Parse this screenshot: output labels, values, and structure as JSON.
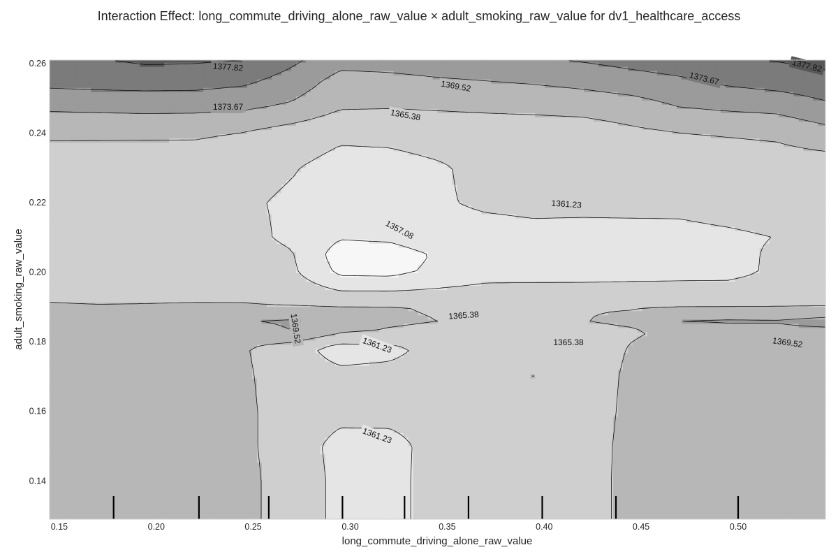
{
  "chart_data": {
    "type": "contour",
    "title": "Interaction Effect: long_commute_driving_alone_raw_value × adult_smoking_raw_value for dv1_healthcare_access",
    "xlabel": "long_commute_driving_alone_raw_value",
    "ylabel": "adult_smoking_raw_value",
    "xlim": [
      0.145,
      0.545
    ],
    "ylim": [
      0.129,
      0.261
    ],
    "xticks": [
      "0.15",
      "0.20",
      "0.25",
      "0.30",
      "0.35",
      "0.40",
      "0.45",
      "0.50"
    ],
    "yticks": [
      "0.14",
      "0.16",
      "0.18",
      "0.20",
      "0.22",
      "0.24",
      "0.26"
    ],
    "contour_levels": [
      1357.08,
      1361.23,
      1365.38,
      1369.52,
      1373.67,
      1377.82
    ],
    "contour_labels": [
      "1377.82",
      "1373.67",
      "1369.52",
      "1365.38",
      "1361.23",
      "1357.08"
    ],
    "colormap": "greys",
    "grid": false,
    "rug_x": [
      0.178,
      0.222,
      0.258,
      0.296,
      0.328,
      0.361,
      0.399,
      0.437,
      0.5
    ],
    "x": [
      0.145,
      0.17,
      0.195,
      0.22,
      0.245,
      0.27,
      0.295,
      0.32,
      0.345,
      0.37,
      0.395,
      0.42,
      0.445,
      0.47,
      0.495,
      0.52,
      0.545
    ],
    "y": [
      0.129,
      0.14,
      0.15,
      0.16,
      0.17,
      0.178,
      0.183,
      0.186,
      0.19,
      0.2,
      0.205,
      0.21,
      0.22,
      0.23,
      0.24,
      0.248,
      0.255,
      0.261
    ],
    "z": [
      [
        1367.5,
        1367.5,
        1367.4,
        1367.2,
        1366.4,
        1363.6,
        1360.2,
        1359.8,
        1363.0,
        1363.8,
        1363.9,
        1363.8,
        1366.5,
        1367.0,
        1367.5,
        1368.5,
        1369.4
      ],
      [
        1367.5,
        1367.5,
        1367.4,
        1367.2,
        1366.4,
        1363.6,
        1360.2,
        1359.8,
        1363.0,
        1363.8,
        1363.9,
        1363.8,
        1366.5,
        1367.0,
        1367.5,
        1368.5,
        1369.4
      ],
      [
        1367.5,
        1367.5,
        1367.4,
        1367.2,
        1366.2,
        1363.4,
        1359.9,
        1359.8,
        1362.8,
        1363.8,
        1363.9,
        1363.8,
        1366.4,
        1367.0,
        1367.5,
        1368.5,
        1369.4
      ],
      [
        1367.5,
        1367.5,
        1367.4,
        1367.2,
        1366.2,
        1363.4,
        1362.4,
        1362.6,
        1362.8,
        1363.6,
        1363.6,
        1363.6,
        1366.2,
        1366.9,
        1367.5,
        1368.5,
        1369.3
      ],
      [
        1367.4,
        1367.4,
        1367.3,
        1367.1,
        1366.0,
        1363.2,
        1362.4,
        1362.6,
        1362.8,
        1363.6,
        1365.5,
        1363.6,
        1366.0,
        1366.8,
        1367.4,
        1368.4,
        1369.0
      ],
      [
        1367.4,
        1367.4,
        1367.3,
        1367.1,
        1365.7,
        1363.0,
        1359.4,
        1360.1,
        1362.6,
        1363.6,
        1363.8,
        1363.6,
        1365.6,
        1366.8,
        1367.4,
        1368.2,
        1368.8
      ],
      [
        1366.8,
        1367.2,
        1367.4,
        1367.6,
        1368.0,
        1369.5,
        1366.0,
        1365.0,
        1364.4,
        1364.3,
        1364.2,
        1364.4,
        1365.0,
        1366.0,
        1367.8,
        1368.5,
        1368.5
      ],
      [
        1368.5,
        1369.0,
        1369.1,
        1369.2,
        1369.3,
        1370.0,
        1366.8,
        1366.0,
        1365.4,
        1365.2,
        1364.9,
        1365.3,
        1366.0,
        1369.6,
        1370.0,
        1369.8,
        1371.0
      ],
      [
        1365.7,
        1365.6,
        1365.6,
        1365.7,
        1365.7,
        1365.5,
        1365.6,
        1365.6,
        1365.0,
        1365.1,
        1365.1,
        1365.2,
        1365.2,
        1365.3,
        1365.3,
        1365.3,
        1365.3
      ],
      [
        1363.4,
        1362.8,
        1363.4,
        1363.3,
        1363.2,
        1362.0,
        1356.2,
        1356.0,
        1358.0,
        1359.5,
        1359.6,
        1359.6,
        1359.8,
        1359.9,
        1360.0,
        1362.0,
        1363.0
      ],
      [
        1363.3,
        1363.2,
        1363.2,
        1363.1,
        1363.0,
        1361.5,
        1355.0,
        1355.1,
        1357.5,
        1359.4,
        1359.4,
        1359.4,
        1359.5,
        1359.6,
        1359.8,
        1362.0,
        1362.5
      ],
      [
        1363.0,
        1363.0,
        1363.0,
        1362.7,
        1362.3,
        1360.5,
        1357.4,
        1357.8,
        1359.7,
        1359.8,
        1360.2,
        1359.9,
        1359.9,
        1360.0,
        1360.5,
        1361.3,
        1362.0
      ],
      [
        1365.0,
        1363.5,
        1362.5,
        1362.0,
        1361.8,
        1360.6,
        1359.7,
        1359.7,
        1360.8,
        1361.8,
        1362.1,
        1362.2,
        1362.3,
        1362.3,
        1363.0,
        1363.5,
        1363.0
      ],
      [
        1363.2,
        1363.1,
        1363.0,
        1362.8,
        1362.7,
        1361.5,
        1359.8,
        1359.9,
        1360.8,
        1362.2,
        1362.3,
        1362.3,
        1362.3,
        1362.3,
        1362.4,
        1363.0,
        1363.0
      ],
      [
        1366.0,
        1366.0,
        1366.0,
        1366.0,
        1365.2,
        1363.5,
        1362.0,
        1362.2,
        1362.8,
        1363.0,
        1363.0,
        1363.2,
        1364.5,
        1365.3,
        1365.8,
        1366.2,
        1368.0
      ],
      [
        1370.5,
        1370.8,
        1371.0,
        1370.9,
        1370.5,
        1369.0,
        1366.0,
        1365.8,
        1366.0,
        1366.3,
        1366.6,
        1367.0,
        1367.8,
        1369.8,
        1370.5,
        1371.0,
        1373.0
      ],
      [
        1375.0,
        1375.3,
        1375.5,
        1375.4,
        1374.5,
        1372.0,
        1368.0,
        1368.3,
        1369.0,
        1369.5,
        1370.0,
        1370.8,
        1372.0,
        1373.0,
        1374.5,
        1375.5,
        1376.5
      ],
      [
        1377.0,
        1377.5,
        1378.5,
        1378.3,
        1377.8,
        1374.5,
        1371.0,
        1371.3,
        1372.0,
        1372.5,
        1373.0,
        1374.0,
        1375.0,
        1376.0,
        1377.0,
        1378.0,
        1379.0
      ]
    ]
  }
}
